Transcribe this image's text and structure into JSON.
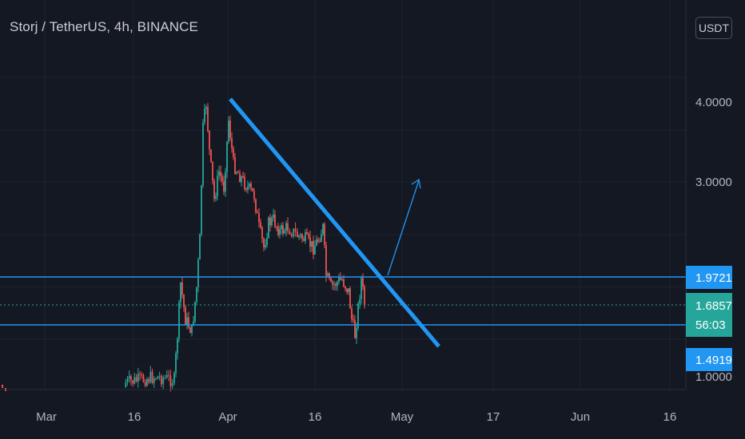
{
  "header": {
    "title": "Storj / TetherUS, 4h, BINANCE",
    "currency_button": "USDT"
  },
  "price_axis": {
    "ticks": [
      "4.0000",
      "3.0000",
      "1.0000"
    ]
  },
  "time_axis": {
    "ticks": [
      "Mar",
      "16",
      "Apr",
      "16",
      "May",
      "17",
      "Jun",
      "16"
    ]
  },
  "price_labels": {
    "resistance": "1.9721",
    "last_price": "1.6857",
    "countdown": "56:03",
    "support": "1.4919"
  },
  "colors": {
    "background": "#141823",
    "grid": "#1e222d",
    "up_candle": "#26a69a",
    "down_candle": "#ef5350",
    "trendline": "#2196f3",
    "level_line": "#2196f3",
    "last_price_badge": "#26a69a"
  },
  "chart_data": {
    "type": "candlestick",
    "symbol": "STORJUSDT",
    "interval": "4h",
    "exchange": "BINANCE",
    "last_price": 1.6857,
    "horizontal_levels": [
      1.9721,
      1.4919
    ],
    "price_ticks": [
      4.0,
      3.0,
      1.0
    ],
    "time_ticks": [
      "Mar",
      "16",
      "Apr",
      "16",
      "May",
      "17",
      "Jun",
      "16"
    ],
    "drawings": [
      {
        "type": "trendline",
        "description": "descending resistance from Apr high toward May"
      },
      {
        "type": "arrow",
        "description": "projected breakout upward"
      }
    ]
  }
}
